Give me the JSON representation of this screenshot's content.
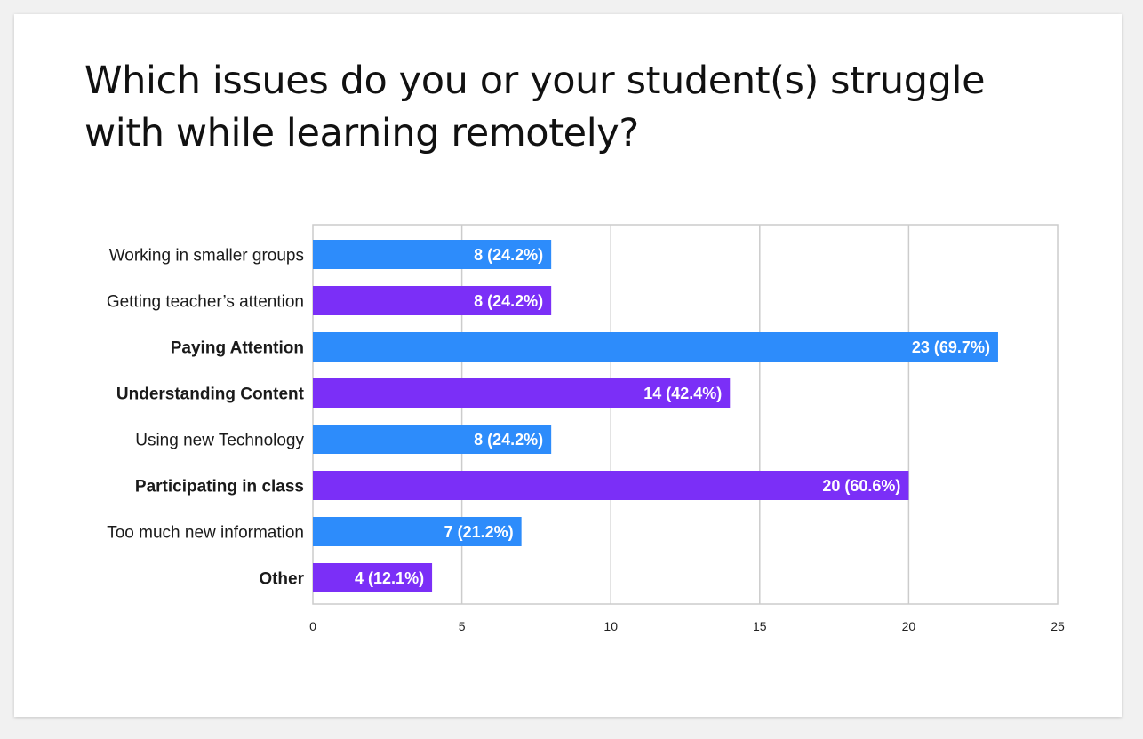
{
  "chart_data": {
    "type": "bar",
    "orientation": "horizontal",
    "title": "Which issues do you or your student(s) struggle with while learning remotely?",
    "categories": [
      "Working in smaller groups",
      "Getting teacher’s attention",
      "Paying Attention",
      "Understanding Content",
      "Using new Technology",
      "Participating in class",
      "Too much new information",
      "Other"
    ],
    "values": [
      8,
      8,
      23,
      14,
      8,
      20,
      7,
      4
    ],
    "data_labels": [
      "8 (24.2%)",
      "8 (24.2%)",
      "23 (69.7%)",
      "14 (42.4%)",
      "8 (24.2%)",
      "20 (60.6%)",
      "7 (21.2%)",
      "4 (12.1%)"
    ],
    "bold_categories": [
      false,
      false,
      true,
      true,
      false,
      true,
      false,
      true
    ],
    "bar_colors": [
      "#2d8cfb",
      "#7b2ff7",
      "#2d8cfb",
      "#7b2ff7",
      "#2d8cfb",
      "#7b2ff7",
      "#2d8cfb",
      "#7b2ff7"
    ],
    "xticks": [
      0,
      5,
      10,
      15,
      20,
      25
    ],
    "xlim": [
      0,
      25
    ],
    "grid": true,
    "legend": "none"
  }
}
